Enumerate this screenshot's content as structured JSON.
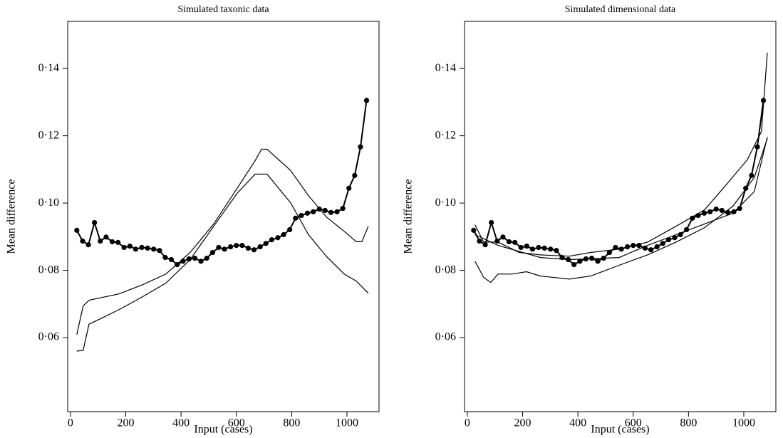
{
  "chart_data": [
    {
      "type": "line",
      "title": "Simulated taxonic data",
      "xlabel": "Input (cases)",
      "ylabel": "Mean difference",
      "xlim": [
        -10,
        1116
      ],
      "ylim": [
        0.038,
        0.154
      ],
      "xticks": [
        0,
        200,
        400,
        600,
        800,
        1000
      ],
      "yticks": [
        {
          "value": 0.06,
          "label": "0·06"
        },
        {
          "value": 0.08,
          "label": "0·08"
        },
        {
          "value": 0.1,
          "label": "0·10"
        },
        {
          "value": 0.12,
          "label": "0·12"
        },
        {
          "value": 0.14,
          "label": "0·14"
        }
      ],
      "series": [
        {
          "color": "#000000",
          "marker": "circle",
          "x": [
            23,
            44,
            65,
            87,
            108,
            129,
            151,
            172,
            194,
            215,
            236,
            258,
            279,
            301,
            322,
            343,
            365,
            386,
            407,
            429,
            450,
            472,
            493,
            514,
            536,
            557,
            579,
            600,
            621,
            643,
            664,
            686,
            707,
            728,
            750,
            771,
            793,
            814,
            835,
            857,
            878,
            900,
            921,
            942,
            964,
            985,
            1007,
            1028,
            1049,
            1071
          ],
          "values": [
            0.0919,
            0.0887,
            0.0876,
            0.0942,
            0.0887,
            0.0899,
            0.0885,
            0.0883,
            0.0868,
            0.0872,
            0.0863,
            0.0868,
            0.0866,
            0.0863,
            0.0859,
            0.0838,
            0.0832,
            0.0817,
            0.0827,
            0.0834,
            0.0836,
            0.0827,
            0.0836,
            0.0853,
            0.0868,
            0.0863,
            0.087,
            0.0874,
            0.0874,
            0.0866,
            0.0861,
            0.087,
            0.088,
            0.0891,
            0.0897,
            0.0906,
            0.0921,
            0.0955,
            0.0963,
            0.097,
            0.0974,
            0.0982,
            0.0978,
            0.0972,
            0.0974,
            0.0984,
            0.1044,
            0.1082,
            0.1167,
            0.1305
          ]
        },
        {
          "color": "#000000",
          "x": [
            23,
            46,
            67,
            111,
            175,
            260,
            345,
            433,
            518,
            603,
            668,
            691,
            711,
            796,
            861,
            925,
            990,
            1034,
            1054,
            1077
          ],
          "values": [
            0.0609,
            0.0694,
            0.0711,
            0.0719,
            0.073,
            0.0757,
            0.0789,
            0.0853,
            0.0938,
            0.1044,
            0.1126,
            0.116,
            0.116,
            0.1097,
            0.1022,
            0.0959,
            0.0916,
            0.0885,
            0.0885,
            0.0931
          ]
        },
        {
          "color": "#000000",
          "x": [
            23,
            46,
            67,
            111,
            175,
            260,
            345,
            433,
            518,
            603,
            668,
            711,
            796,
            861,
            925,
            990,
            1034,
            1077
          ],
          "values": [
            0.056,
            0.0562,
            0.064,
            0.0657,
            0.0683,
            0.0721,
            0.0762,
            0.0832,
            0.0931,
            0.1029,
            0.1086,
            0.1086,
            0.1001,
            0.0906,
            0.0842,
            0.0789,
            0.0768,
            0.0732
          ]
        }
      ]
    },
    {
      "type": "line",
      "title": "Simulated dimensional data",
      "xlabel": "Input (cases)",
      "ylabel": "Mean difference",
      "xlim": [
        -10,
        1116
      ],
      "ylim": [
        0.038,
        0.154
      ],
      "xticks": [
        0,
        200,
        400,
        600,
        800,
        1000
      ],
      "yticks": [
        {
          "value": 0.06,
          "label": "0·06"
        },
        {
          "value": 0.08,
          "label": "0·08"
        },
        {
          "value": 0.1,
          "label": "0·10"
        },
        {
          "value": 0.12,
          "label": "0·12"
        },
        {
          "value": 0.14,
          "label": "0·14"
        }
      ],
      "series": [
        {
          "color": "#000000",
          "marker": "circle",
          "x": [
            23,
            44,
            65,
            87,
            108,
            129,
            151,
            172,
            194,
            215,
            236,
            258,
            279,
            301,
            322,
            343,
            365,
            386,
            407,
            429,
            450,
            472,
            493,
            514,
            536,
            557,
            579,
            600,
            621,
            643,
            664,
            686,
            707,
            728,
            750,
            771,
            793,
            814,
            835,
            857,
            878,
            900,
            921,
            942,
            964,
            985,
            1007,
            1028,
            1049,
            1071
          ],
          "values": [
            0.0919,
            0.0887,
            0.0876,
            0.0942,
            0.0887,
            0.0899,
            0.0885,
            0.0883,
            0.0868,
            0.0872,
            0.0863,
            0.0868,
            0.0866,
            0.0863,
            0.0859,
            0.0838,
            0.0832,
            0.0817,
            0.0827,
            0.0834,
            0.0836,
            0.0827,
            0.0836,
            0.0853,
            0.0868,
            0.0863,
            0.087,
            0.0874,
            0.0874,
            0.0866,
            0.0861,
            0.087,
            0.088,
            0.0891,
            0.0897,
            0.0906,
            0.0921,
            0.0955,
            0.0963,
            0.097,
            0.0974,
            0.0982,
            0.0978,
            0.0972,
            0.0974,
            0.0984,
            0.1044,
            0.1082,
            0.1167,
            0.1305
          ]
        },
        {
          "color": "#000000",
          "x": [
            28,
            59,
            111,
            188,
            265,
            369,
            446,
            549,
            652,
            755,
            858,
            936,
            1013,
            1064,
            1085
          ],
          "values": [
            0.0935,
            0.0884,
            0.0884,
            0.0853,
            0.0846,
            0.0842,
            0.0853,
            0.0863,
            0.0884,
            0.0931,
            0.098,
            0.1054,
            0.1129,
            0.1213,
            0.1447
          ]
        },
        {
          "color": "#000000",
          "x": [
            28,
            111,
            265,
            369,
            549,
            652,
            755,
            858,
            961,
            1038,
            1085
          ],
          "values": [
            0.0906,
            0.0874,
            0.0838,
            0.0832,
            0.0838,
            0.0874,
            0.0906,
            0.0938,
            0.097,
            0.1034,
            0.1196
          ]
        },
        {
          "color": "#000000",
          "x": [
            28,
            59,
            85,
            111,
            162,
            214,
            265,
            369,
            446,
            549,
            652,
            755,
            858,
            961,
            1038,
            1085
          ],
          "values": [
            0.0827,
            0.0779,
            0.0764,
            0.0789,
            0.0789,
            0.0796,
            0.0783,
            0.0774,
            0.0783,
            0.0815,
            0.0846,
            0.0884,
            0.0927,
            0.0991,
            0.1076,
            0.1192
          ]
        }
      ]
    }
  ]
}
